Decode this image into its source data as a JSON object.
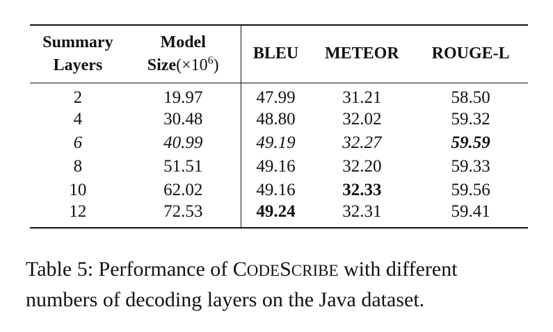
{
  "table": {
    "headers": {
      "summary_line1": "Summary",
      "summary_line2": "Layers",
      "size_line1": "Model",
      "size_line2": "Size",
      "size_unit_open": "(×10",
      "size_unit_exp": "6",
      "size_unit_close": ")",
      "bleu": "BLEU",
      "meteor": "METEOR",
      "rouge": "ROUGE-L"
    },
    "rows": [
      {
        "layers": "2",
        "size": "19.97",
        "bleu": "47.99",
        "meteor": "31.21",
        "rouge": "58.50"
      },
      {
        "layers": "4",
        "size": "30.48",
        "bleu": "48.80",
        "meteor": "32.02",
        "rouge": "59.32"
      },
      {
        "layers": "6",
        "size": "40.99",
        "bleu": "49.19",
        "meteor": "32.27",
        "rouge": "59.59"
      },
      {
        "layers": "8",
        "size": "51.51",
        "bleu": "49.16",
        "meteor": "32.20",
        "rouge": "59.33"
      },
      {
        "layers": "10",
        "size": "62.02",
        "bleu": "49.16",
        "meteor": "32.33",
        "rouge": "59.56"
      },
      {
        "layers": "12",
        "size": "72.53",
        "bleu": "49.24",
        "meteor": "32.31",
        "rouge": "59.41"
      }
    ]
  },
  "caption": {
    "label": "Table 5:",
    "text_before": "Performance of",
    "model_c": "C",
    "model_ode": "ODE",
    "model_s": "S",
    "model_cribe": "CRIBE",
    "text_after": "with different numbers of decoding layers on the Java dataset."
  }
}
